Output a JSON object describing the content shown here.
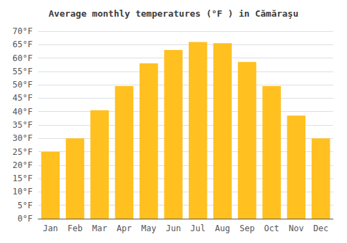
{
  "chart_data": {
    "type": "bar",
    "title": "Average monthly temperatures (°F ) in Cămăraşu",
    "categories": [
      "Jan",
      "Feb",
      "Mar",
      "Apr",
      "May",
      "Jun",
      "Jul",
      "Aug",
      "Sep",
      "Oct",
      "Nov",
      "Dec"
    ],
    "values": [
      25,
      30,
      40.5,
      49.5,
      58,
      63,
      66,
      65.5,
      58.5,
      49.5,
      38.5,
      30
    ],
    "color": "#FFC020",
    "ylim": [
      0,
      70
    ],
    "yticks": [
      {
        "value": 0,
        "label": "0°F"
      },
      {
        "value": 5,
        "label": "5°F"
      },
      {
        "value": 10,
        "label": "10°F"
      },
      {
        "value": 15,
        "label": "15°F"
      },
      {
        "value": 20,
        "label": "20°F"
      },
      {
        "value": 25,
        "label": "25°F"
      },
      {
        "value": 30,
        "label": "30°F"
      },
      {
        "value": 35,
        "label": "35°F"
      },
      {
        "value": 40,
        "label": "40°F"
      },
      {
        "value": 45,
        "label": "45°F"
      },
      {
        "value": 50,
        "label": "50°F"
      },
      {
        "value": 55,
        "label": "55°F"
      },
      {
        "value": 60,
        "label": "60°F"
      },
      {
        "value": 65,
        "label": "65°F"
      },
      {
        "value": 70,
        "label": "70°F"
      }
    ],
    "grid": true
  }
}
